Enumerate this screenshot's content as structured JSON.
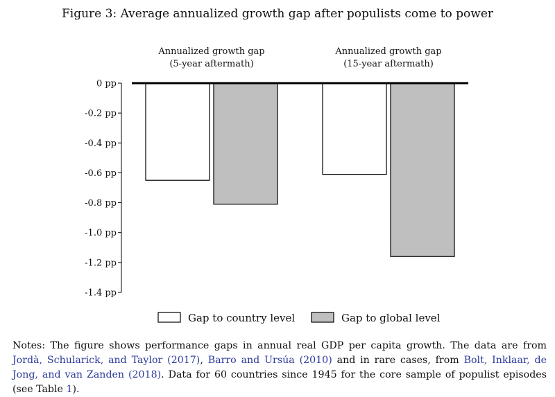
{
  "figure": {
    "title": "Figure 3:   Average annualized growth gap after populists come to power"
  },
  "chart_data": {
    "type": "bar",
    "title": "Average annualized growth gap after populists come to power",
    "categories": [
      [
        "Annualized growth gap",
        "(5-year aftermath)"
      ],
      [
        "Annualized growth gap",
        "(15-year aftermath)"
      ]
    ],
    "series": [
      {
        "name": "Gap to country level",
        "values": [
          -0.65,
          -0.61
        ],
        "color": "#ffffff"
      },
      {
        "name": "Gap to global level",
        "values": [
          -0.81,
          -1.16
        ],
        "color": "#bfbfbf"
      }
    ],
    "y_ticks": [
      {
        "value": 0,
        "label": "0 pp"
      },
      {
        "value": -0.2,
        "label": "-0.2 pp"
      },
      {
        "value": -0.4,
        "label": "-0.4 pp"
      },
      {
        "value": -0.6,
        "label": "-0.6 pp"
      },
      {
        "value": -0.8,
        "label": "-0.8 pp"
      },
      {
        "value": -1.0,
        "label": "-1.0 pp"
      },
      {
        "value": -1.2,
        "label": "-1.2 pp"
      },
      {
        "value": -1.4,
        "label": "-1.4 pp"
      }
    ],
    "ylim": [
      -1.4,
      0
    ],
    "legend_position": "bottom",
    "grid": false
  },
  "notes": {
    "parts": [
      {
        "text": "Notes: The figure shows performance gaps in annual real GDP per capita growth. The data are from ",
        "ref": false
      },
      {
        "text": "Jordà, Schularick, and Taylor (2017)",
        "ref": true
      },
      {
        "text": ", ",
        "ref": false
      },
      {
        "text": "Barro and Ursúa (2010)",
        "ref": true
      },
      {
        "text": " and in rare cases, from ",
        "ref": false
      },
      {
        "text": "Bolt, Inklaar, de Jong, and van Zanden (2018)",
        "ref": true
      },
      {
        "text": ". Data for 60 countries since 1945 for the core sample of populist episodes (see Table ",
        "ref": false
      },
      {
        "text": "1",
        "ref": true
      },
      {
        "text": ").",
        "ref": false
      }
    ]
  }
}
